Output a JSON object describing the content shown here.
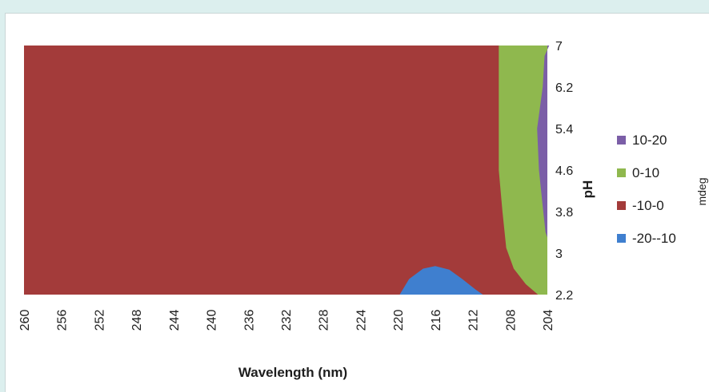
{
  "chart_data": {
    "type": "heatmap",
    "subtype": "contour",
    "title": "",
    "xlabel": "Wavelength (nm)",
    "ylabel": "pH",
    "zlabel": "mdeg",
    "x_ticks": [
      260,
      256,
      252,
      248,
      244,
      240,
      236,
      232,
      228,
      224,
      220,
      216,
      212,
      208,
      204
    ],
    "x_range": [
      260,
      204
    ],
    "y_ticks": [
      2.2,
      3,
      3.8,
      4.6,
      5.4,
      6.2,
      7
    ],
    "y_range": [
      2.2,
      7
    ],
    "legend_position": "right",
    "grid": false,
    "bands": [
      {
        "label": "10-20",
        "color": "#7b5ea7"
      },
      {
        "label": "0-10",
        "color": "#8fb84e"
      },
      {
        "label": "-10-0",
        "color": "#a33b3a"
      },
      {
        "label": "-20--10",
        "color": "#3f7fcf"
      }
    ],
    "regions": [
      {
        "band": "-10-0",
        "polygon": [
          [
            260,
            2.2
          ],
          [
            260,
            7
          ],
          [
            204,
            7
          ],
          [
            204,
            2.2
          ]
        ]
      },
      {
        "band": "0-10",
        "polygon": [
          [
            209.2,
            7
          ],
          [
            209.2,
            4.6
          ],
          [
            208.8,
            3.8
          ],
          [
            208.4,
            3.1
          ],
          [
            207.6,
            2.7
          ],
          [
            206.3,
            2.4
          ],
          [
            205.0,
            2.2
          ],
          [
            204,
            2.2
          ],
          [
            204,
            7
          ]
        ]
      },
      {
        "band": "10-20",
        "polygon": [
          [
            203.8,
            7
          ],
          [
            204.3,
            6.8
          ],
          [
            204.5,
            6.2
          ],
          [
            205.1,
            5.4
          ],
          [
            204.9,
            4.6
          ],
          [
            204.5,
            3.9
          ],
          [
            204.2,
            3.4
          ],
          [
            204,
            3.3
          ],
          [
            204,
            7
          ]
        ]
      },
      {
        "band": "-20--10",
        "polygon": [
          [
            219.8,
            2.2
          ],
          [
            218.8,
            2.5
          ],
          [
            217.3,
            2.7
          ],
          [
            216.0,
            2.75
          ],
          [
            214.5,
            2.68
          ],
          [
            213.1,
            2.5
          ],
          [
            211.7,
            2.3
          ],
          [
            210.9,
            2.2
          ]
        ]
      }
    ]
  }
}
